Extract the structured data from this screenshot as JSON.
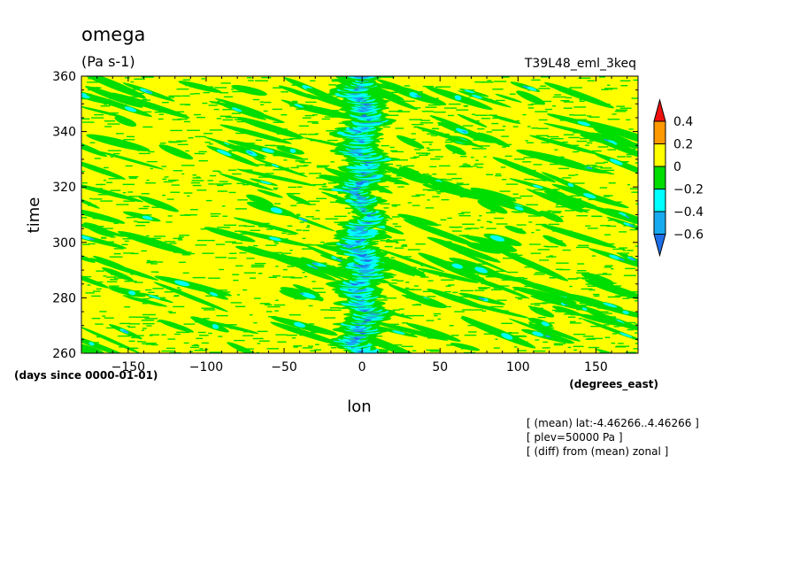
{
  "chart_data": {
    "type": "heatmap",
    "title": "omega",
    "subtitle": "(Pa s-1)",
    "run_label": "T39L48_eml_3keq",
    "xlabel": "lon",
    "ylabel": "time",
    "x_units": "(degrees_east)",
    "y_units": "(days since 0000-01-01)",
    "xlim": [
      -180,
      177
    ],
    "ylim": [
      260,
      360
    ],
    "x_ticks": [
      -150,
      -100,
      -50,
      0,
      50,
      100,
      150
    ],
    "x_tick_labels": [
      "-150",
      "-100",
      "-50",
      "0",
      "50",
      "100",
      "150"
    ],
    "y_ticks": [
      260,
      280,
      300,
      320,
      340,
      360
    ],
    "y_tick_labels": [
      "260",
      "280",
      "300",
      "320",
      "340",
      "360"
    ],
    "colorbar": {
      "levels": [
        -0.6,
        -0.4,
        -0.2,
        0,
        0.2,
        0.4
      ],
      "labels": [
        "-0.6",
        "-0.4",
        "-0.2",
        "0",
        "0.2",
        "0.4"
      ],
      "colors": [
        "#1f6fe8",
        "#18aaf0",
        "#00ffff",
        "#00dd00",
        "#ffff00",
        "#ff9900",
        "#ee1111"
      ],
      "extend": "both"
    },
    "annotations": [
      "[ (mean) lat:-4.46266..4.46266 ]",
      "[ plev=50000 Pa ]",
      "[ (diff) from (mean) zonal ]"
    ],
    "features": {
      "equatorial_band_center_lon": 0,
      "dominant_value_range": [
        0,
        0.2
      ],
      "eastward_propagating_streaks": true
    }
  }
}
